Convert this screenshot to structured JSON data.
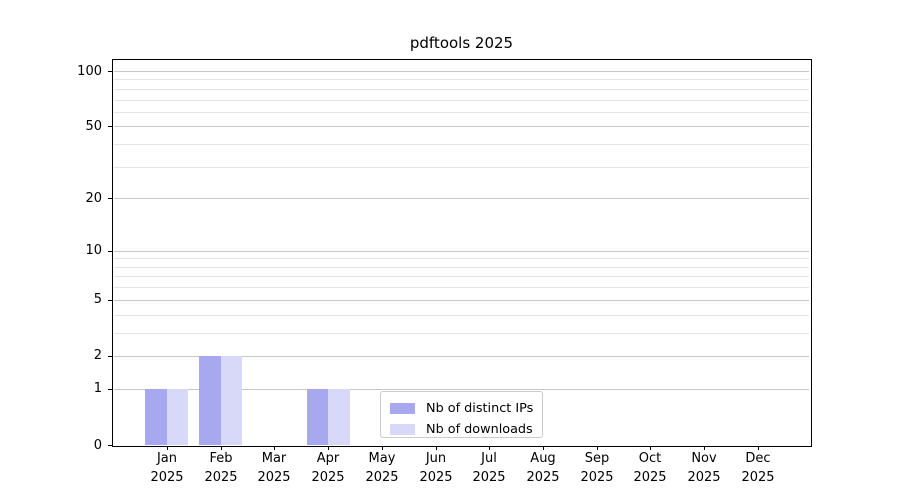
{
  "chart_data": {
    "type": "bar",
    "title": "pdftools 2025",
    "xlabel": "",
    "ylabel": "",
    "categories": [
      "Jan",
      "Feb",
      "Mar",
      "Apr",
      "May",
      "Jun",
      "Jul",
      "Aug",
      "Sep",
      "Oct",
      "Nov",
      "Dec"
    ],
    "year_label": "2025",
    "series": [
      {
        "name": "Nb of distinct IPs",
        "color": "#a8a8f0",
        "values": [
          1,
          2,
          0,
          1,
          0,
          0,
          0,
          0,
          0,
          0,
          0,
          0
        ]
      },
      {
        "name": "Nb of downloads",
        "color": "#d8d8f8",
        "values": [
          1,
          2,
          0,
          1,
          0,
          0,
          0,
          0,
          0,
          0,
          0,
          0
        ]
      }
    ],
    "yscale": "log1p",
    "ylim": [
      0,
      115
    ],
    "y_major_ticks": [
      0,
      1,
      2,
      5,
      10,
      20,
      50,
      100
    ],
    "y_minor_gridlines": [
      3,
      4,
      6,
      7,
      8,
      9,
      30,
      40,
      60,
      70,
      80,
      90
    ],
    "grid": "horizontal",
    "legend_position": "lower center",
    "colors": {
      "major_grid": "#c6c6c6",
      "minor_grid": "#e4e4e4",
      "axis": "#000000",
      "text": "#000000",
      "legend_border": "#cccccc"
    }
  }
}
